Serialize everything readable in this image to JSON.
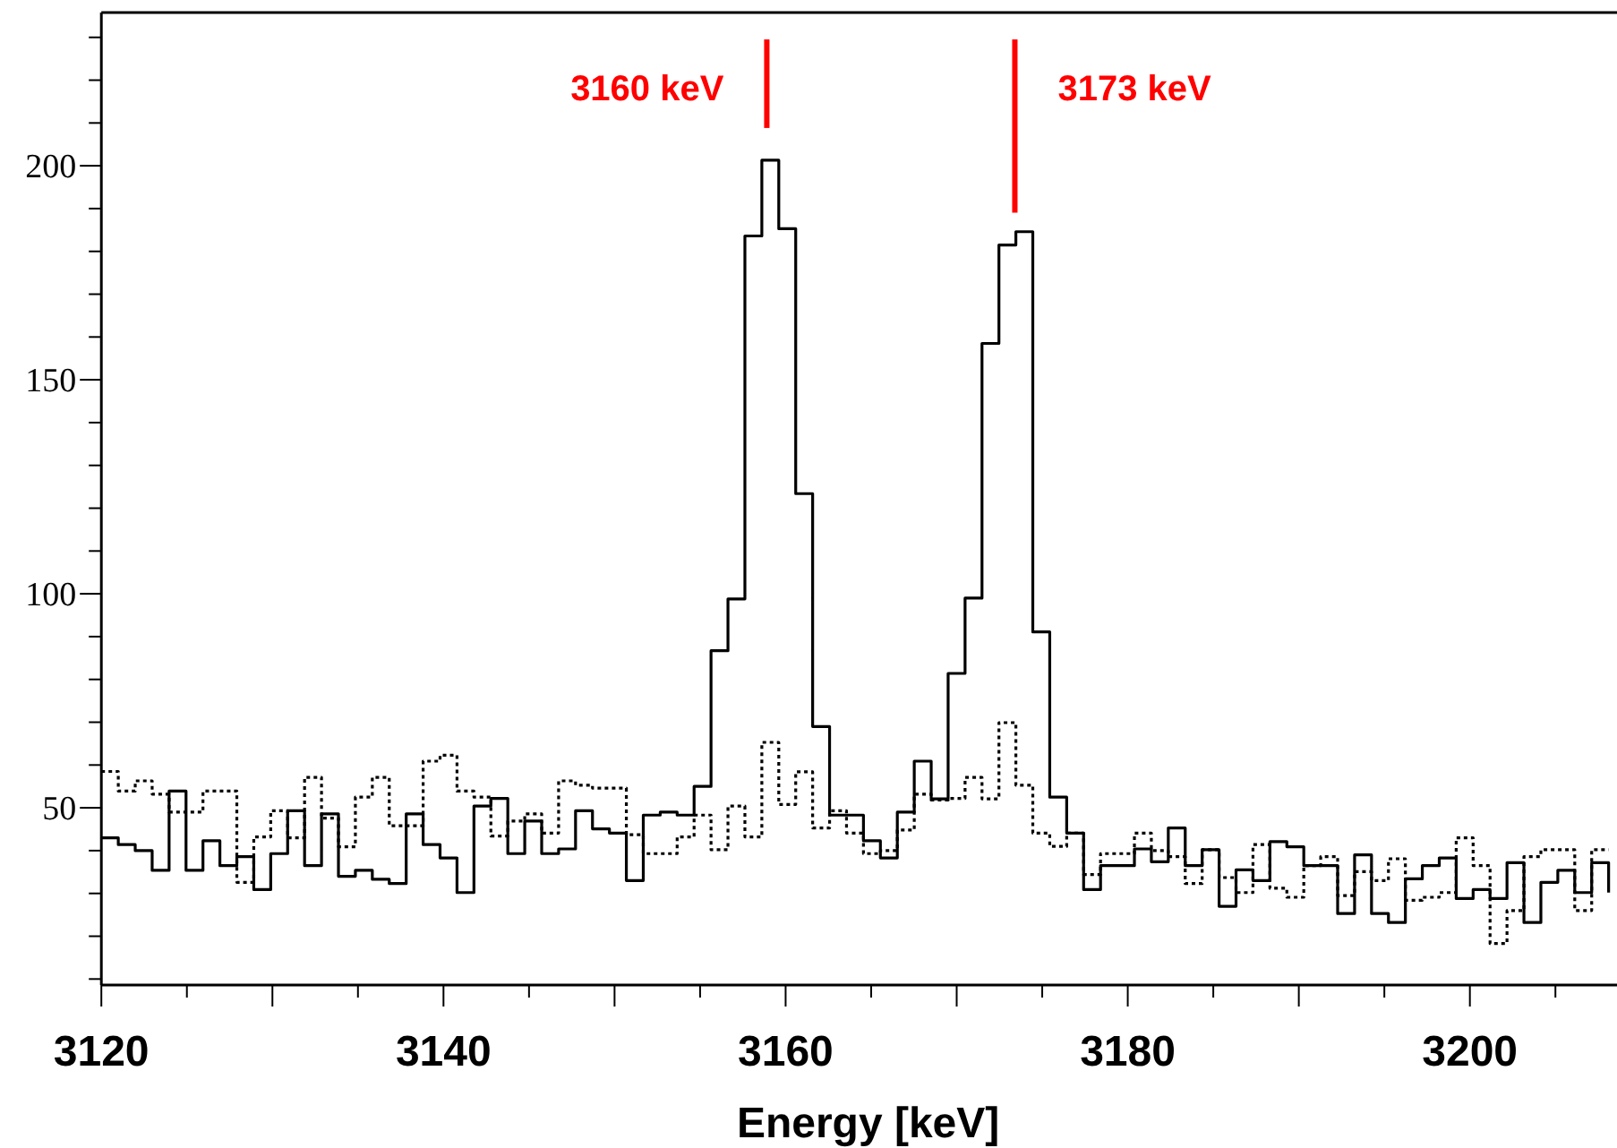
{
  "chart_data": {
    "type": "step",
    "xlabel": "Energy [keV]",
    "x": [
      3120,
      3120.99,
      3121.98,
      3122.97,
      3123.96,
      3124.95,
      3125.94,
      3126.93,
      3127.92,
      3128.91,
      3129.9,
      3130.89,
      3131.88,
      3132.87,
      3133.86,
      3134.85,
      3135.84,
      3136.83,
      3137.82,
      3138.81,
      3139.8,
      3140.79,
      3141.78,
      3142.77,
      3143.76,
      3144.75,
      3145.74,
      3146.73,
      3147.72,
      3148.71,
      3149.7,
      3150.69,
      3151.68,
      3152.67,
      3153.66,
      3154.65,
      3155.64,
      3156.63,
      3157.62,
      3158.61,
      3159.6,
      3160.59,
      3161.58,
      3162.57,
      3163.56,
      3164.55,
      3165.54,
      3166.53,
      3167.52,
      3168.51,
      3169.5,
      3170.49,
      3171.48,
      3172.47,
      3173.46,
      3174.45,
      3175.44,
      3176.43,
      3177.42,
      3178.41,
      3179.4,
      3180.39,
      3181.38,
      3182.37,
      3183.36,
      3184.35,
      3185.34,
      3186.33,
      3187.32,
      3188.31,
      3189.3,
      3190.29,
      3191.28,
      3192.27,
      3193.26,
      3194.25,
      3195.24,
      3196.23,
      3197.22,
      3198.21,
      3199.2,
      3200.19,
      3201.18,
      3202.17,
      3203.16,
      3204.15,
      3205.14,
      3206.13,
      3207.12,
      3208.11
    ],
    "series": [
      {
        "color": "#000000",
        "line_style": "solid",
        "values": [
          43,
          41.4,
          40,
          35.4,
          53.9,
          35.4,
          42.3,
          36.5,
          38.6,
          30.9,
          39.3,
          49.3,
          36.5,
          48.6,
          34,
          35.4,
          33.3,
          32.3,
          48.6,
          41.4,
          38.3,
          30.2,
          50.4,
          52.2,
          39.3,
          46.9,
          39.3,
          40.4,
          49.3,
          45.1,
          44.1,
          33,
          48.3,
          49,
          48.3,
          55,
          86.7,
          98.8,
          183.6,
          201.3,
          185.3,
          123.4,
          69,
          48.3,
          48.3,
          42.3,
          38.3,
          49,
          60.9,
          52.1,
          81.4,
          99,
          158.5,
          181.5,
          184.6,
          91.1,
          52.5,
          44.1,
          30.9,
          36.5,
          36.5,
          40.4,
          37.4,
          45.3,
          36.5,
          40.2,
          27,
          35.5,
          33,
          42.1,
          40.9,
          36.5,
          36.5,
          25.3,
          39,
          25.3,
          23.2,
          33.4,
          36.5,
          38.3,
          28.8,
          30.9,
          28.8,
          37.2,
          23.2,
          32.6,
          35.4,
          30.2,
          37.2,
          30.2
        ]
      },
      {
        "color": "#000000",
        "line_style": "dotted",
        "values": [
          58.5,
          53.9,
          56.3,
          53.2,
          49,
          49,
          53.9,
          53.9,
          32.6,
          43.2,
          49.3,
          43,
          57.1,
          47.6,
          40.9,
          52.5,
          57.1,
          45.8,
          45.8,
          60.9,
          62.3,
          53.9,
          52.5,
          43.4,
          46.9,
          48.6,
          44.1,
          56.3,
          55.3,
          54.6,
          54.6,
          43.7,
          39.3,
          39.3,
          43.2,
          48.3,
          40.2,
          50.4,
          43.2,
          65.3,
          50.8,
          58.4,
          45.3,
          49.3,
          44.1,
          39.3,
          40,
          44.8,
          53.2,
          51.8,
          52.2,
          57.1,
          52.1,
          69.9,
          55.3,
          44.1,
          41,
          44.1,
          34.4,
          39.3,
          39.3,
          44.1,
          40,
          38.6,
          32.3,
          40.2,
          33.7,
          30.2,
          41.4,
          31.2,
          29.1,
          36.5,
          38.6,
          29.5,
          35.1,
          33,
          38.1,
          28.4,
          29.1,
          30.2,
          43,
          36.5,
          18.3,
          26,
          38.6,
          40.2,
          40.2,
          26,
          40.2,
          40.2
        ]
      }
    ],
    "xlim": [
      3120,
      3208.6
    ],
    "ylim": [
      8.6,
      235.8
    ],
    "xticks": [
      3120,
      {
        "value": 3125,
        "label": null
      },
      {
        "value": 3130,
        "label": null
      },
      {
        "value": 3135,
        "label": null
      },
      3140,
      {
        "value": 3145,
        "label": null
      },
      {
        "value": 3150,
        "label": null
      },
      {
        "value": 3155,
        "label": null
      },
      3160,
      {
        "value": 3165,
        "label": null
      },
      {
        "value": 3170,
        "label": null
      },
      {
        "value": 3175,
        "label": null
      },
      3180,
      {
        "value": 3185,
        "label": null
      },
      {
        "value": 3190,
        "label": null
      },
      {
        "value": 3195,
        "label": null
      },
      3200,
      {
        "value": 3205,
        "label": null
      }
    ],
    "yticks": [
      {
        "value": 10,
        "label": null
      },
      {
        "value": 20,
        "label": null
      },
      {
        "value": 30,
        "label": null
      },
      {
        "value": 40,
        "label": null
      },
      50,
      {
        "value": 60,
        "label": null
      },
      {
        "value": 70,
        "label": null
      },
      {
        "value": 80,
        "label": null
      },
      {
        "value": 90,
        "label": null
      },
      100,
      {
        "value": 110,
        "label": null
      },
      {
        "value": 120,
        "label": null
      },
      {
        "value": 130,
        "label": null
      },
      {
        "value": 140,
        "label": null
      },
      150,
      {
        "value": 160,
        "label": null
      },
      {
        "value": 170,
        "label": null
      },
      {
        "value": 180,
        "label": null
      },
      {
        "value": 190,
        "label": null
      },
      200,
      {
        "value": 210,
        "label": null
      },
      {
        "value": 220,
        "label": null
      },
      {
        "value": 230,
        "label": null
      }
    ],
    "ref_lines": [
      {
        "axis": "x",
        "value": 3158.9,
        "label": "3160 keV",
        "color": "#ff0000"
      },
      {
        "axis": "x",
        "value": 3173.4,
        "label": "3173 keV",
        "color": "#ff0000"
      }
    ]
  }
}
